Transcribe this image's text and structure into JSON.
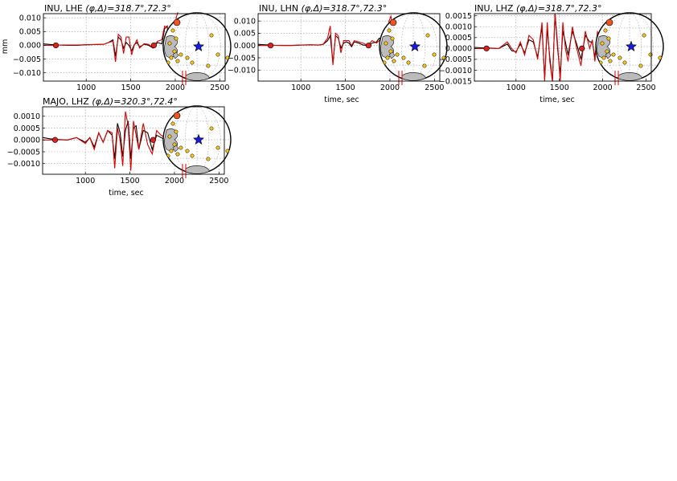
{
  "chart_data": [
    {
      "type": "line",
      "title_main": "INU, LHE ",
      "title_math": "(φ,Δ)=318.7°,72.3°",
      "xlabel": "",
      "ylabel": "mm",
      "xlim": [
        520,
        2560
      ],
      "ylim": [
        -0.013,
        0.0115
      ],
      "xticks": [
        "1000",
        "1500",
        "2000",
        "2500"
      ],
      "xtick_values": [
        1000,
        1500,
        2000,
        2500
      ],
      "yticks": [
        "0.010",
        "0.005",
        "0.000",
        "−0.005",
        "−0.010"
      ],
      "ytick_values": [
        0.01,
        0.005,
        0.0,
        -0.005,
        -0.01
      ],
      "grid": true,
      "markers": [
        {
          "x": 660,
          "y": 0.0
        },
        {
          "x": 1760,
          "y": 0.0
        }
      ],
      "series": [
        {
          "color": "#000000",
          "x": [
            520,
            600,
            700,
            800,
            900,
            1000,
            1100,
            1200,
            1250,
            1300,
            1330,
            1360,
            1390,
            1420,
            1450,
            1480,
            1510,
            1540,
            1570,
            1600,
            1650,
            1700,
            1750,
            1800,
            1850,
            1880,
            1910,
            1940,
            1970,
            2000
          ],
          "y": [
            0.0005,
            0.0003,
            0.0001,
            0.0,
            0.0,
            0.0002,
            0.0003,
            0.0004,
            0.001,
            0.002,
            -0.004,
            0.003,
            0.002,
            -0.001,
            0.001,
            0.0,
            -0.002,
            0.0002,
            0.001,
            -0.0006,
            0.0004,
            0.0,
            -0.001,
            0.001,
            0.0005,
            0.006,
            0.007,
            -0.003,
            -0.004,
            0.001
          ]
        },
        {
          "color": "#dd0000",
          "x": [
            520,
            600,
            700,
            800,
            900,
            1000,
            1100,
            1200,
            1250,
            1300,
            1330,
            1360,
            1390,
            1420,
            1450,
            1480,
            1510,
            1540,
            1570,
            1600,
            1650,
            1700,
            1750,
            1800,
            1850,
            1880,
            1910,
            1940,
            1970,
            1990,
            2010,
            2030
          ],
          "y": [
            0.0,
            0.0,
            0.0001,
            0.0001,
            0.0001,
            0.0002,
            0.0003,
            0.0004,
            0.001,
            0.0015,
            -0.006,
            0.004,
            0.003,
            -0.003,
            0.003,
            0.003,
            -0.0035,
            0.0,
            0.002,
            -0.001,
            0.0006,
            0.0004,
            -0.001,
            0.0015,
            0.002,
            0.007,
            0.0065,
            -0.006,
            -0.005,
            0.004,
            0.01,
            0.012
          ]
        }
      ]
    },
    {
      "type": "line",
      "title_main": "INU, LHN ",
      "title_math": "(φ,Δ)=318.7°,72.3°",
      "xlabel": "time, sec",
      "ylabel": "",
      "xlim": [
        520,
        2560
      ],
      "ylim": [
        -0.0145,
        0.013
      ],
      "xticks": [
        "1000",
        "1500",
        "2000",
        "2500"
      ],
      "xtick_values": [
        1000,
        1500,
        2000,
        2500
      ],
      "yticks": [
        "0.010",
        "0.005",
        "0.000",
        "−0.005",
        "−0.010"
      ],
      "ytick_values": [
        0.01,
        0.005,
        0.0,
        -0.005,
        -0.01
      ],
      "grid": true,
      "markers": [
        {
          "x": 660,
          "y": 0.0
        },
        {
          "x": 1760,
          "y": 0.0
        }
      ],
      "series": [
        {
          "color": "#000000",
          "x": [
            520,
            600,
            700,
            800,
            900,
            1000,
            1100,
            1200,
            1250,
            1300,
            1330,
            1360,
            1390,
            1420,
            1450,
            1480,
            1510,
            1540,
            1570,
            1600,
            1650,
            1700,
            1750,
            1800,
            1850,
            1880,
            1910,
            1940,
            1970,
            2000
          ],
          "y": [
            0.0005,
            0.0003,
            0.0001,
            0.0,
            0.0,
            0.0002,
            0.0003,
            0.0002,
            0.0005,
            0.002,
            0.004,
            -0.007,
            0.004,
            0.003,
            -0.001,
            0.001,
            0.0015,
            0.001,
            -0.0005,
            0.0015,
            0.001,
            0.0002,
            0.0,
            0.001,
            0.0015,
            0.003,
            0.003,
            -0.002,
            0.004,
            0.006
          ]
        },
        {
          "color": "#dd0000",
          "x": [
            520,
            600,
            700,
            800,
            900,
            1000,
            1100,
            1200,
            1250,
            1300,
            1330,
            1360,
            1390,
            1420,
            1450,
            1480,
            1510,
            1540,
            1570,
            1600,
            1650,
            1700,
            1750,
            1800,
            1850,
            1880,
            1910,
            1940,
            1970,
            1990,
            2010,
            2030
          ],
          "y": [
            0.0,
            0.0,
            0.0001,
            0.0001,
            0.0001,
            0.0002,
            0.0003,
            0.0002,
            0.0005,
            0.003,
            0.008,
            -0.008,
            0.005,
            0.004,
            -0.003,
            0.002,
            0.002,
            0.002,
            0.0,
            0.002,
            0.0015,
            0.001,
            0.0,
            0.002,
            0.001,
            0.002,
            0.004,
            -0.006,
            0.003,
            0.01,
            0.012,
            0.008
          ]
        }
      ]
    },
    {
      "type": "line",
      "title_main": "INU, LHZ ",
      "title_math": "(φ,Δ)=318.7°,72.3°",
      "xlabel": "time, sec",
      "ylabel": "",
      "xlim": [
        520,
        2560
      ],
      "ylim": [
        -0.0015,
        0.0016
      ],
      "xticks": [
        "1000",
        "1500",
        "2000",
        "2500"
      ],
      "xtick_values": [
        1000,
        1500,
        2000,
        2500
      ],
      "yticks": [
        "0.0015",
        "0.0010",
        "0.0005",
        "0.0000",
        "−0.0005",
        "−0.0010",
        "−0.0015"
      ],
      "ytick_values": [
        0.0015,
        0.001,
        0.0005,
        0.0,
        -0.0005,
        -0.001,
        -0.0015
      ],
      "grid": true,
      "markers": [
        {
          "x": 660,
          "y": 0.0
        },
        {
          "x": 1760,
          "y": 0.0
        }
      ],
      "series": [
        {
          "color": "#000000",
          "x": [
            520,
            600,
            700,
            800,
            900,
            950,
            1000,
            1050,
            1100,
            1150,
            1200,
            1250,
            1300,
            1330,
            1360,
            1390,
            1420,
            1450,
            1480,
            1510,
            1540,
            1570,
            1600,
            1650,
            1700,
            1750,
            1800,
            1850,
            1880,
            1910,
            1940,
            1970,
            2000
          ],
          "y": [
            5e-05,
            3e-05,
            2e-05,
            0.0,
            0.0002,
            -0.0001,
            -0.00015,
            0.0002,
            -0.0002,
            0.0004,
            0.0003,
            -0.0004,
            0.001,
            -0.0014,
            0.0009,
            -0.0004,
            -0.0015,
            0.0016,
            0.0,
            -0.0012,
            0.0008,
            0.0003,
            -0.0003,
            0.0008,
            0.0002,
            -0.0005,
            0.0006,
            0.0003,
            0.0003,
            -0.0004,
            0.0006,
            0.0002,
            0.0001
          ]
        },
        {
          "color": "#dd0000",
          "x": [
            520,
            600,
            700,
            800,
            900,
            950,
            1000,
            1050,
            1100,
            1150,
            1200,
            1250,
            1300,
            1330,
            1360,
            1390,
            1420,
            1450,
            1480,
            1510,
            1540,
            1570,
            1600,
            1650,
            1700,
            1750,
            1800,
            1850,
            1880,
            1910,
            1940,
            1970,
            2000
          ],
          "y": [
            0.0,
            0.0,
            1e-05,
            0.0,
            0.0003,
            0.0,
            -0.0002,
            0.0003,
            -0.0003,
            0.0006,
            0.0004,
            -0.0005,
            0.0012,
            -0.0015,
            0.0012,
            -0.0006,
            -0.0015,
            0.0016,
            0.0002,
            -0.0015,
            0.0012,
            0.0,
            -0.0006,
            0.001,
            0.0,
            -0.0008,
            0.0008,
            0.0,
            0.0004,
            -0.0006,
            0.0008,
            -0.0003,
            0.001
          ]
        }
      ]
    },
    {
      "type": "line",
      "title_main": "MAJO, LHZ ",
      "title_math": "(φ,Δ)=320.3°,72.4°",
      "xlabel": "time, sec",
      "ylabel": "",
      "xlim": [
        520,
        2560
      ],
      "ylim": [
        -0.00145,
        0.0014
      ],
      "xticks": [
        "1000",
        "1500",
        "2000",
        "2500"
      ],
      "xtick_values": [
        1000,
        1500,
        2000,
        2500
      ],
      "yticks": [
        "0.0010",
        "0.0005",
        "0.0000",
        "−0.0005",
        "−0.0010"
      ],
      "ytick_values": [
        0.001,
        0.0005,
        0.0,
        -0.0005,
        -0.001
      ],
      "grid": true,
      "markers": [
        {
          "x": 660,
          "y": 0.0
        },
        {
          "x": 1760,
          "y": 0.0
        }
      ],
      "series": [
        {
          "color": "#000000",
          "x": [
            520,
            600,
            700,
            800,
            900,
            1000,
            1050,
            1100,
            1150,
            1200,
            1250,
            1300,
            1330,
            1360,
            1390,
            1420,
            1450,
            1480,
            1510,
            1540,
            1570,
            1600,
            1650,
            1700,
            1750,
            1800,
            1850,
            1900
          ],
          "y": [
            0.0001,
            5e-05,
            2e-05,
            0.0,
            0.0001,
            -0.0001,
            0.0001,
            -0.0003,
            0.0003,
            -0.0001,
            0.0004,
            0.0002,
            -0.0008,
            0.0007,
            0.0003,
            -0.0007,
            0.0004,
            0.0008,
            -0.0008,
            0.0005,
            0.0006,
            -0.0004,
            0.0004,
            0.0003,
            -0.0004,
            0.0002,
            0.0001,
            0.0
          ]
        },
        {
          "color": "#dd0000",
          "x": [
            520,
            600,
            700,
            800,
            900,
            1000,
            1050,
            1100,
            1150,
            1200,
            1250,
            1300,
            1330,
            1360,
            1390,
            1420,
            1450,
            1480,
            1510,
            1540,
            1570,
            1600,
            1650,
            1700,
            1750,
            1800,
            1850,
            1900,
            1950,
            2000
          ],
          "y": [
            0.0,
            0.0,
            1e-05,
            0.0,
            0.0001,
            -0.00015,
            0.0001,
            -0.0004,
            0.0003,
            -0.0001,
            0.0004,
            0.0003,
            -0.0012,
            0.0005,
            0.0,
            -0.0011,
            0.0012,
            0.0006,
            -0.0013,
            0.0008,
            0.0002,
            -0.0004,
            0.0007,
            -0.0002,
            -0.0006,
            0.0004,
            0.0002,
            0.0001,
            0.0,
            0.0001
          ]
        }
      ]
    }
  ]
}
